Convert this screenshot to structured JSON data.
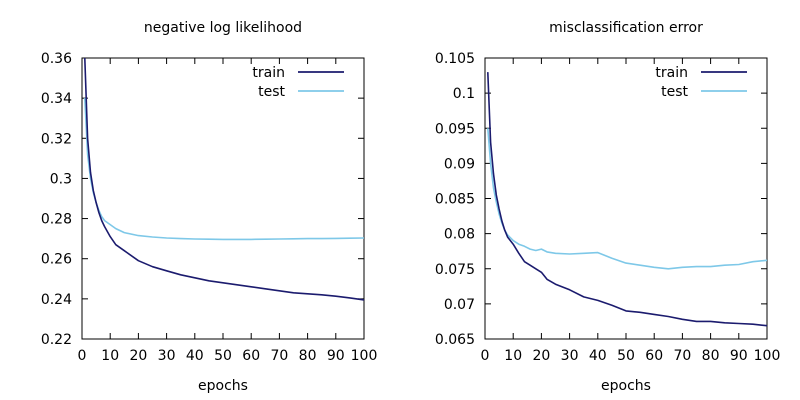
{
  "chart_data": [
    {
      "type": "line",
      "title": "negative log likelihood",
      "xlabel": "epochs",
      "ylabel": "",
      "xlim": [
        0,
        100
      ],
      "ylim": [
        0.22,
        0.36
      ],
      "xticks": [
        0,
        10,
        20,
        30,
        40,
        50,
        60,
        70,
        80,
        90,
        100
      ],
      "xtick_labels": [
        "0",
        "10",
        "20",
        "30",
        "40",
        "50",
        "60",
        "70",
        "80",
        "90",
        "100"
      ],
      "yticks": [
        0.22,
        0.24,
        0.26,
        0.28,
        0.3,
        0.32,
        0.34,
        0.36
      ],
      "ytick_labels": [
        "0.22",
        "0.24",
        "0.26",
        "0.28",
        "0.3",
        "0.32",
        "0.34",
        "0.36"
      ],
      "legend": "top-right",
      "series": [
        {
          "name": "train",
          "color": "#1b1b6e",
          "x": [
            1,
            2,
            3,
            4,
            5,
            6,
            7,
            8,
            10,
            12,
            15,
            20,
            25,
            30,
            35,
            40,
            45,
            50,
            55,
            60,
            65,
            70,
            75,
            80,
            85,
            90,
            95,
            100
          ],
          "y": [
            0.36,
            0.32,
            0.303,
            0.294,
            0.288,
            0.283,
            0.279,
            0.276,
            0.271,
            0.267,
            0.264,
            0.259,
            0.256,
            0.254,
            0.252,
            0.2505,
            0.249,
            0.248,
            0.247,
            0.246,
            0.245,
            0.244,
            0.243,
            0.2425,
            0.242,
            0.2413,
            0.2405,
            0.2395
          ]
        },
        {
          "name": "test",
          "color": "#7ec8e8",
          "x": [
            1,
            2,
            3,
            4,
            5,
            6,
            7,
            8,
            10,
            12,
            15,
            20,
            25,
            30,
            35,
            40,
            45,
            50,
            55,
            60,
            65,
            70,
            75,
            80,
            85,
            90,
            95,
            100
          ],
          "y": [
            0.34,
            0.312,
            0.3,
            0.293,
            0.288,
            0.284,
            0.281,
            0.279,
            0.277,
            0.275,
            0.273,
            0.2715,
            0.2708,
            0.2703,
            0.27,
            0.2698,
            0.2697,
            0.2696,
            0.2696,
            0.2696,
            0.2697,
            0.2698,
            0.2699,
            0.27,
            0.27,
            0.2701,
            0.2702,
            0.2703
          ]
        }
      ]
    },
    {
      "type": "line",
      "title": "misclassification error",
      "xlabel": "epochs",
      "ylabel": "",
      "xlim": [
        0,
        100
      ],
      "ylim": [
        0.065,
        0.105
      ],
      "xticks": [
        0,
        10,
        20,
        30,
        40,
        50,
        60,
        70,
        80,
        90,
        100
      ],
      "xtick_labels": [
        "0",
        "10",
        "20",
        "30",
        "40",
        "50",
        "60",
        "70",
        "80",
        "90",
        "100"
      ],
      "yticks": [
        0.065,
        0.07,
        0.075,
        0.08,
        0.085,
        0.09,
        0.095,
        0.1,
        0.105
      ],
      "ytick_labels": [
        "0.065",
        "0.07",
        "0.075",
        "0.08",
        "0.085",
        "0.09",
        "0.095",
        "0.1",
        "0.105"
      ],
      "legend": "top-right",
      "series": [
        {
          "name": "train",
          "color": "#1b1b6e",
          "x": [
            1,
            2,
            3,
            4,
            5,
            6,
            7,
            8,
            10,
            12,
            14,
            16,
            18,
            20,
            22,
            25,
            30,
            35,
            40,
            45,
            50,
            55,
            60,
            65,
            70,
            75,
            80,
            85,
            90,
            95,
            100
          ],
          "y": [
            0.103,
            0.093,
            0.0885,
            0.0855,
            0.0835,
            0.0818,
            0.0805,
            0.0795,
            0.0785,
            0.0772,
            0.076,
            0.0755,
            0.075,
            0.0745,
            0.0735,
            0.0728,
            0.072,
            0.071,
            0.0705,
            0.0698,
            0.069,
            0.0688,
            0.0685,
            0.0682,
            0.0678,
            0.0675,
            0.0675,
            0.0673,
            0.0672,
            0.0671,
            0.0669
          ]
        },
        {
          "name": "test",
          "color": "#7ec8e8",
          "x": [
            1,
            2,
            3,
            4,
            5,
            6,
            7,
            8,
            10,
            12,
            14,
            16,
            18,
            20,
            22,
            25,
            30,
            35,
            40,
            45,
            50,
            55,
            60,
            65,
            70,
            75,
            80,
            85,
            90,
            95,
            100
          ],
          "y": [
            0.095,
            0.09,
            0.0865,
            0.0845,
            0.0828,
            0.0815,
            0.0805,
            0.0798,
            0.079,
            0.0785,
            0.0782,
            0.0778,
            0.0776,
            0.0778,
            0.0774,
            0.0772,
            0.0771,
            0.0772,
            0.0773,
            0.0765,
            0.0758,
            0.0755,
            0.0752,
            0.075,
            0.0752,
            0.0753,
            0.0753,
            0.0755,
            0.0756,
            0.076,
            0.0762
          ]
        }
      ]
    }
  ]
}
